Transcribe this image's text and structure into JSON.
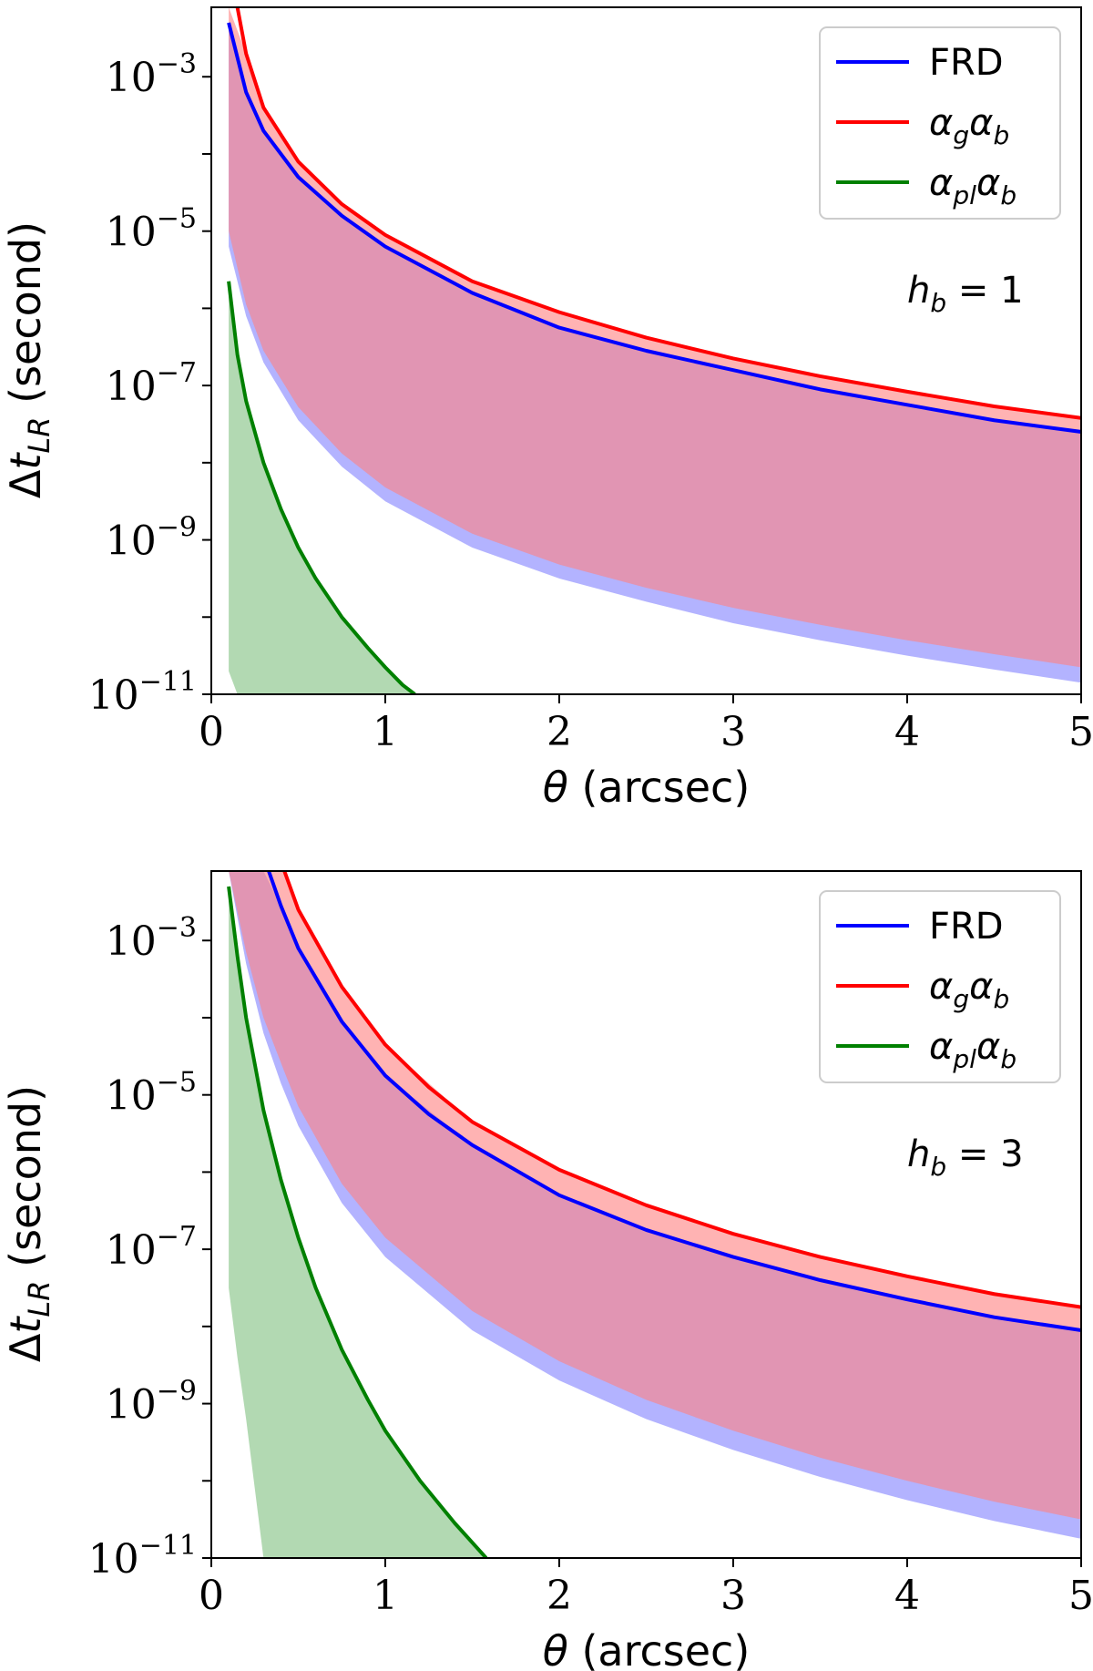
{
  "chart_data": [
    {
      "type": "line",
      "title": "",
      "xlabel_symbol": "θ",
      "xlabel_unit": "(arcsec)",
      "ylabel_prefix": "Δt",
      "ylabel_sub": "LR",
      "ylabel_unit": "(second)",
      "xlim": [
        0,
        5
      ],
      "ylim_log10": [
        -11,
        -2.1
      ],
      "xticks": [
        {
          "v": 0,
          "label": "0"
        },
        {
          "v": 1,
          "label": "1"
        },
        {
          "v": 2,
          "label": "2"
        },
        {
          "v": 3,
          "label": "3"
        },
        {
          "v": 4,
          "label": "4"
        },
        {
          "v": 5,
          "label": "5"
        }
      ],
      "yticks": [
        {
          "exp": -3,
          "base": "10",
          "sup": "−3"
        },
        {
          "exp": -5,
          "base": "10",
          "sup": "−5"
        },
        {
          "exp": -7,
          "base": "10",
          "sup": "−7"
        },
        {
          "exp": -9,
          "base": "10",
          "sup": "−9"
        },
        {
          "exp": -11,
          "base": "10",
          "sup": "−11"
        }
      ],
      "annotation": {
        "h": "h",
        "sub": "b",
        "rest": "= 1"
      },
      "legend": [
        {
          "key": "frd",
          "label_base": "FRD",
          "label_sub": "",
          "label_base2": "",
          "label_sub2": "",
          "color": "#0000ff"
        },
        {
          "key": "gb",
          "label_base": "α",
          "label_sub": "g",
          "label_base2": "α",
          "label_sub2": "b",
          "color": "#ff0000"
        },
        {
          "key": "plb",
          "label_base": "α",
          "label_sub": "pl",
          "label_base2": "α",
          "label_sub2": "b",
          "color": "#008000"
        }
      ],
      "series": [
        {
          "name": "FRD",
          "color": "#0000ff",
          "x": [
            0.1,
            0.2,
            0.3,
            0.5,
            0.75,
            1,
            1.5,
            2,
            2.5,
            3,
            3.5,
            4,
            4.5,
            5
          ],
          "y_log10": [
            -2.3,
            -3.2,
            -3.7,
            -4.3,
            -4.8,
            -5.2,
            -5.8,
            -6.25,
            -6.55,
            -6.8,
            -7.05,
            -7.25,
            -7.45,
            -7.6
          ]
        },
        {
          "name": "αgαb",
          "color": "#ff0000",
          "x": [
            0.15,
            0.2,
            0.3,
            0.5,
            0.75,
            1,
            1.5,
            2,
            2.5,
            3,
            3.5,
            4,
            4.5,
            5
          ],
          "y_log10": [
            -2.1,
            -2.7,
            -3.4,
            -4.1,
            -4.65,
            -5.05,
            -5.65,
            -6.05,
            -6.38,
            -6.65,
            -6.88,
            -7.08,
            -7.27,
            -7.42
          ]
        },
        {
          "name": "αplαb",
          "color": "#008000",
          "x": [
            0.1,
            0.15,
            0.2,
            0.3,
            0.4,
            0.5,
            0.6,
            0.75,
            0.9,
            1,
            1.1,
            1.17
          ],
          "y_log10": [
            -5.65,
            -6.6,
            -7.2,
            -8.0,
            -8.6,
            -9.1,
            -9.5,
            -10.0,
            -10.4,
            -10.65,
            -10.88,
            -11.0
          ]
        }
      ],
      "bands": [
        {
          "name": "FRD band",
          "color": "#8080ff",
          "opacity": 0.6,
          "x": [
            0.1,
            0.2,
            0.3,
            0.5,
            0.75,
            1,
            1.5,
            2,
            2.5,
            3,
            3.5,
            4,
            4.5,
            5
          ],
          "upper_log10": [
            -2.3,
            -3.2,
            -3.7,
            -4.3,
            -4.8,
            -5.2,
            -5.8,
            -6.25,
            -6.55,
            -6.8,
            -7.05,
            -7.25,
            -7.45,
            -7.6
          ],
          "lower_log10": [
            -5.2,
            -6.1,
            -6.7,
            -7.45,
            -8.05,
            -8.5,
            -9.1,
            -9.5,
            -9.8,
            -10.08,
            -10.3,
            -10.5,
            -10.68,
            -10.85
          ]
        },
        {
          "name": "αgαb band",
          "color": "#ff8080",
          "opacity": 0.6,
          "x": [
            0.1,
            0.2,
            0.3,
            0.5,
            0.75,
            1,
            1.5,
            2,
            2.5,
            3,
            3.5,
            4,
            4.5,
            5
          ],
          "upper_log10": [
            -2.1,
            -2.7,
            -3.4,
            -4.1,
            -4.65,
            -5.05,
            -5.65,
            -6.05,
            -6.38,
            -6.65,
            -6.88,
            -7.08,
            -7.27,
            -7.42
          ],
          "lower_log10": [
            -5.0,
            -5.95,
            -6.55,
            -7.28,
            -7.88,
            -8.32,
            -8.92,
            -9.32,
            -9.62,
            -9.88,
            -10.1,
            -10.3,
            -10.48,
            -10.65
          ]
        },
        {
          "name": "αplαb band",
          "color": "#008000",
          "opacity": 0.3,
          "x": [
            0.1,
            0.15,
            0.2,
            0.3,
            0.4,
            0.5,
            0.6,
            0.75,
            0.9,
            1,
            1.1,
            1.17
          ],
          "upper_log10": [
            -5.65,
            -6.6,
            -7.2,
            -8.0,
            -8.6,
            -9.1,
            -9.5,
            -10.0,
            -10.4,
            -10.65,
            -10.88,
            -11.0
          ],
          "lower_log10": [
            -10.7,
            -11.0,
            -11.0,
            -11.0,
            -11.0,
            -11.0,
            -11.0,
            -11.0,
            -11.0,
            -11.0,
            -11.0,
            -11.0
          ]
        }
      ]
    },
    {
      "type": "line",
      "title": "",
      "xlabel_symbol": "θ",
      "xlabel_unit": "(arcsec)",
      "ylabel_prefix": "Δt",
      "ylabel_sub": "LR",
      "ylabel_unit": "(second)",
      "xlim": [
        0,
        5
      ],
      "ylim_log10": [
        -11,
        -2.1
      ],
      "xticks": [
        {
          "v": 0,
          "label": "0"
        },
        {
          "v": 1,
          "label": "1"
        },
        {
          "v": 2,
          "label": "2"
        },
        {
          "v": 3,
          "label": "3"
        },
        {
          "v": 4,
          "label": "4"
        },
        {
          "v": 5,
          "label": "5"
        }
      ],
      "yticks": [
        {
          "exp": -3,
          "base": "10",
          "sup": "−3"
        },
        {
          "exp": -5,
          "base": "10",
          "sup": "−5"
        },
        {
          "exp": -7,
          "base": "10",
          "sup": "−7"
        },
        {
          "exp": -9,
          "base": "10",
          "sup": "−9"
        },
        {
          "exp": -11,
          "base": "10",
          "sup": "−11"
        }
      ],
      "annotation": {
        "h": "h",
        "sub": "b",
        "rest": "= 3"
      },
      "legend": [
        {
          "key": "frd",
          "label_base": "FRD",
          "label_sub": "",
          "label_base2": "",
          "label_sub2": "",
          "color": "#0000ff"
        },
        {
          "key": "gb",
          "label_base": "α",
          "label_sub": "g",
          "label_base2": "α",
          "label_sub2": "b",
          "color": "#ff0000"
        },
        {
          "key": "plb",
          "label_base": "α",
          "label_sub": "pl",
          "label_base2": "α",
          "label_sub2": "b",
          "color": "#008000"
        }
      ],
      "series": [
        {
          "name": "FRD",
          "color": "#0000ff",
          "x": [
            0.33,
            0.4,
            0.5,
            0.75,
            1,
            1.25,
            1.5,
            2,
            2.5,
            3,
            3.5,
            4,
            4.5,
            5
          ],
          "y_log10": [
            -2.1,
            -2.55,
            -3.1,
            -4.05,
            -4.75,
            -5.25,
            -5.65,
            -6.3,
            -6.75,
            -7.1,
            -7.4,
            -7.65,
            -7.88,
            -8.05
          ]
        },
        {
          "name": "αgαb",
          "color": "#ff0000",
          "x": [
            0.42,
            0.5,
            0.75,
            1,
            1.25,
            1.5,
            2,
            2.5,
            3,
            3.5,
            4,
            4.5,
            5
          ],
          "y_log10": [
            -2.1,
            -2.6,
            -3.6,
            -4.35,
            -4.9,
            -5.35,
            -5.97,
            -6.43,
            -6.8,
            -7.1,
            -7.35,
            -7.58,
            -7.75
          ]
        },
        {
          "name": "αplαb",
          "color": "#008000",
          "x": [
            0.1,
            0.15,
            0.2,
            0.3,
            0.4,
            0.5,
            0.6,
            0.75,
            0.9,
            1,
            1.2,
            1.4,
            1.58
          ],
          "y_log10": [
            -2.3,
            -3.2,
            -4.0,
            -5.2,
            -6.1,
            -6.85,
            -7.5,
            -8.3,
            -8.95,
            -9.35,
            -10.0,
            -10.55,
            -11.0
          ]
        }
      ],
      "bands": [
        {
          "name": "FRD band",
          "color": "#8080ff",
          "opacity": 0.6,
          "x": [
            0.1,
            0.2,
            0.3,
            0.4,
            0.5,
            0.75,
            1,
            1.5,
            2,
            2.5,
            3,
            3.5,
            4,
            4.5,
            5
          ],
          "upper_log10": [
            -2.1,
            -2.1,
            -2.1,
            -2.55,
            -3.1,
            -4.05,
            -4.75,
            -5.65,
            -6.3,
            -6.75,
            -7.1,
            -7.4,
            -7.65,
            -7.88,
            -8.05
          ],
          "lower_log10": [
            -2.1,
            -3.3,
            -4.2,
            -4.85,
            -5.4,
            -6.4,
            -7.1,
            -8.05,
            -8.7,
            -9.2,
            -9.6,
            -9.95,
            -10.25,
            -10.52,
            -10.75
          ]
        },
        {
          "name": "αgαb band",
          "color": "#ff8080",
          "opacity": 0.6,
          "x": [
            0.1,
            0.2,
            0.3,
            0.42,
            0.5,
            0.75,
            1,
            1.5,
            2,
            2.5,
            3,
            3.5,
            4,
            4.5,
            5
          ],
          "upper_log10": [
            -2.1,
            -2.1,
            -2.1,
            -2.1,
            -2.6,
            -3.6,
            -4.35,
            -5.35,
            -5.97,
            -6.43,
            -6.8,
            -7.1,
            -7.35,
            -7.58,
            -7.75
          ],
          "lower_log10": [
            -2.1,
            -3.15,
            -4.0,
            -4.7,
            -5.15,
            -6.15,
            -6.85,
            -7.8,
            -8.45,
            -8.95,
            -9.35,
            -9.7,
            -10.0,
            -10.27,
            -10.5
          ]
        },
        {
          "name": "αplαb band",
          "color": "#008000",
          "opacity": 0.3,
          "x": [
            0.1,
            0.15,
            0.2,
            0.3,
            0.4,
            0.5,
            0.6,
            0.75,
            0.9,
            1,
            1.2,
            1.4,
            1.58
          ],
          "upper_log10": [
            -2.3,
            -3.2,
            -4.0,
            -5.2,
            -6.1,
            -6.85,
            -7.5,
            -8.3,
            -8.95,
            -9.35,
            -10.0,
            -10.55,
            -11.0
          ],
          "lower_log10": [
            -7.5,
            -8.4,
            -9.2,
            -11.0,
            -11.0,
            -11.0,
            -11.0,
            -11.0,
            -11.0,
            -11.0,
            -11.0,
            -11.0,
            -11.0
          ]
        }
      ]
    }
  ]
}
